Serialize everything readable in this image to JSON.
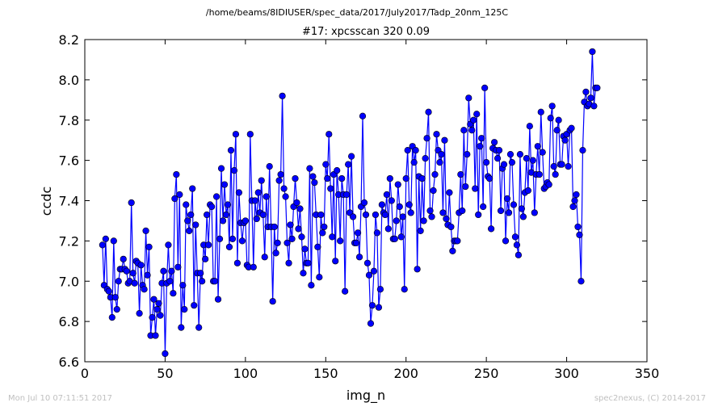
{
  "header": {
    "path": "/home/beams/8IDIUSER/spec_data/2017/July2017/Tadp_20nm_125C"
  },
  "footer": {
    "timestamp": "Mon Jul 10 07:11:51 2017",
    "credit": "spec2nexus, (C) 2014-2017"
  },
  "chart_data": {
    "type": "line",
    "title": "#17: xpcsscan 320 0.09",
    "xlabel": "img_n",
    "ylabel": "ccdc",
    "xlim": [
      0,
      350
    ],
    "ylim": [
      6.6,
      8.2
    ],
    "xticks": [
      0,
      50,
      100,
      150,
      200,
      250,
      300,
      350
    ],
    "yticks": [
      6.6,
      6.8,
      7.0,
      7.2,
      7.4,
      7.6,
      7.8,
      8.0,
      8.2
    ],
    "xtick_labels": [
      "0",
      "50",
      "100",
      "150",
      "200",
      "250",
      "300",
      "350"
    ],
    "ytick_labels": [
      "6.6",
      "6.8",
      "7.0",
      "7.2",
      "7.4",
      "7.6",
      "7.8",
      "8.0",
      "8.2"
    ],
    "grid": false,
    "line_color": "#0000ff",
    "marker": "circle",
    "series": [
      {
        "x_start": 11,
        "x_step": 1,
        "values": [
          7.18,
          6.98,
          7.21,
          6.96,
          6.95,
          6.92,
          6.82,
          7.2,
          6.92,
          6.86,
          7.0,
          7.06,
          7.06,
          7.11,
          7.06,
          7.05,
          6.99,
          7.0,
          7.39,
          7.04,
          6.99,
          7.1,
          7.09,
          6.84,
          7.08,
          6.98,
          6.96,
          7.25,
          7.03,
          7.17,
          6.73,
          6.82,
          6.91,
          6.73,
          6.86,
          6.89,
          6.83,
          6.99,
          7.05,
          6.64,
          6.99,
          7.18,
          7.0,
          7.05,
          6.94,
          7.41,
          7.53,
          7.07,
          7.43,
          6.77,
          6.98,
          6.86,
          7.38,
          7.3,
          7.25,
          7.33,
          7.46,
          6.88,
          7.28,
          7.04,
          6.77,
          7.04,
          7.0,
          7.18,
          7.11,
          7.33,
          7.18,
          7.38,
          7.37,
          7.0,
          7.0,
          7.42,
          6.91,
          7.21,
          7.56,
          7.3,
          7.48,
          7.33,
          7.38,
          7.17,
          7.65,
          7.21,
          7.55,
          7.73,
          7.09,
          7.44,
          7.29,
          7.2,
          7.29,
          7.3,
          7.08,
          7.07,
          7.73,
          7.4,
          7.07,
          7.4,
          7.31,
          7.44,
          7.34,
          7.5,
          7.33,
          7.12,
          7.42,
          7.27,
          7.57,
          7.27,
          6.9,
          7.27,
          7.14,
          7.19,
          7.5,
          7.53,
          7.92,
          7.46,
          7.42,
          7.19,
          7.09,
          7.28,
          7.21,
          7.37,
          7.51,
          7.39,
          7.26,
          7.36,
          7.22,
          7.04,
          7.16,
          7.09,
          7.09,
          7.56,
          6.98,
          7.52,
          7.49,
          7.33,
          7.17,
          7.02,
          7.33,
          7.24,
          7.27,
          7.58,
          7.51,
          7.73,
          7.46,
          7.22,
          7.53,
          7.1,
          7.55,
          7.43,
          7.2,
          7.51,
          7.43,
          6.95,
          7.43,
          7.58,
          7.34,
          7.62,
          7.32,
          7.19,
          7.19,
          7.24,
          7.12,
          7.37,
          7.82,
          7.39,
          7.33,
          7.09,
          7.03,
          6.79,
          6.88,
          7.05,
          7.33,
          7.24,
          6.87,
          6.96,
          7.38,
          7.34,
          7.33,
          7.43,
          7.26,
          7.51,
          7.4,
          7.21,
          7.21,
          7.3,
          7.48,
          7.37,
          7.22,
          7.32,
          6.96,
          7.51,
          7.65,
          7.38,
          7.34,
          7.67,
          7.59,
          7.65,
          7.06,
          7.52,
          7.25,
          7.51,
          7.3,
          7.61,
          7.71,
          7.84,
          7.35,
          7.32,
          7.45,
          7.53,
          7.73,
          7.65,
          7.59,
          7.63,
          7.34,
          7.7,
          7.31,
          7.28,
          7.44,
          7.27,
          7.15,
          7.2,
          7.2,
          7.2,
          7.34,
          7.53,
          7.35,
          7.75,
          7.47,
          7.63,
          7.91,
          7.78,
          7.75,
          7.8,
          7.46,
          7.83,
          7.33,
          7.67,
          7.71,
          7.37,
          7.96,
          7.59,
          7.52,
          7.51,
          7.26,
          7.66,
          7.69,
          7.65,
          7.61,
          7.65,
          7.35,
          7.56,
          7.58,
          7.2,
          7.41,
          7.34,
          7.63,
          7.59,
          7.38,
          7.22,
          7.18,
          7.13,
          7.63,
          7.36,
          7.32,
          7.44,
          7.61,
          7.45,
          7.77,
          7.54,
          7.6,
          7.34,
          7.53,
          7.67,
          7.53,
          7.84,
          7.64,
          7.46,
          7.47,
          7.49,
          7.48,
          7.81,
          7.87,
          7.57,
          7.53,
          7.75,
          7.8,
          7.58,
          7.58,
          7.72,
          7.7,
          7.73,
          7.57,
          7.75,
          7.76,
          7.37,
          7.4,
          7.43,
          7.27,
          7.23,
          7.0,
          7.65,
          7.89,
          7.94,
          7.87,
          7.88,
          7.91,
          8.14,
          7.87,
          7.96,
          7.96
        ]
      }
    ]
  }
}
